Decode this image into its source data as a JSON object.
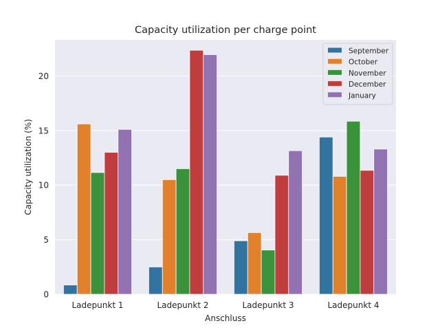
{
  "chart_data": {
    "type": "bar",
    "title": "Capacity utilization per charge point",
    "xlabel": "Anschluss",
    "ylabel": "Capacity utilization (%)",
    "categories": [
      "Ladepunkt 1",
      "Ladepunkt 2",
      "Ladepunkt 3",
      "Ladepunkt 4"
    ],
    "series": [
      {
        "name": "September",
        "color": "#3274a1",
        "values": [
          0.85,
          2.5,
          4.9,
          14.4
        ]
      },
      {
        "name": "October",
        "color": "#e1812c",
        "values": [
          15.6,
          10.5,
          5.65,
          10.8
        ]
      },
      {
        "name": "November",
        "color": "#3a923a",
        "values": [
          11.15,
          11.5,
          4.05,
          15.85
        ]
      },
      {
        "name": "December",
        "color": "#c03d3e",
        "values": [
          13.0,
          22.35,
          10.9,
          11.35
        ]
      },
      {
        "name": "January",
        "color": "#9372b2",
        "values": [
          15.1,
          21.95,
          13.15,
          13.3
        ]
      }
    ],
    "ylim": [
      0,
      23.3
    ],
    "yticks": [
      0,
      5,
      10,
      15,
      20
    ],
    "grid": true,
    "legend_position": "top-right",
    "plot_background": "#eaeaf2"
  }
}
